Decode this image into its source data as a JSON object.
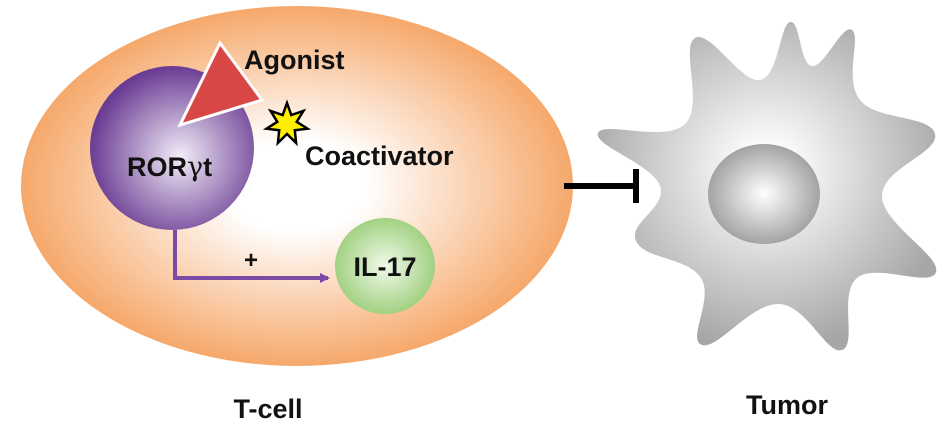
{
  "labels": {
    "agonist": "Agonist",
    "coactivator": "Coactivator",
    "ror_prefix": "ROR",
    "ror_greek": "γ",
    "ror_suffix": "t",
    "plus": "+",
    "il17": "IL-17",
    "tcell": "T-cell",
    "tumor": "Tumor"
  },
  "colors": {
    "tcell_edge": "#f6a86a",
    "tcell_center": "#ffffff",
    "ror_edge": "#6a3c93",
    "ror_center": "#f2ecf7",
    "agonist": "#d94646",
    "coactivator": "#ffee00",
    "il17_edge": "#9acd78",
    "il17_center": "#f1f9ea",
    "arrow": "#7a4aa4",
    "inhibit": "#000000",
    "tumor_edge": "#a6a6a6",
    "tumor_center": "#ffffff",
    "nucleus_edge": "#9a9a9a"
  },
  "icons": {
    "coactivator": "star-icon",
    "agonist": "triangle-wedge-icon",
    "inhibition": "t-bar-inhibition-icon"
  }
}
